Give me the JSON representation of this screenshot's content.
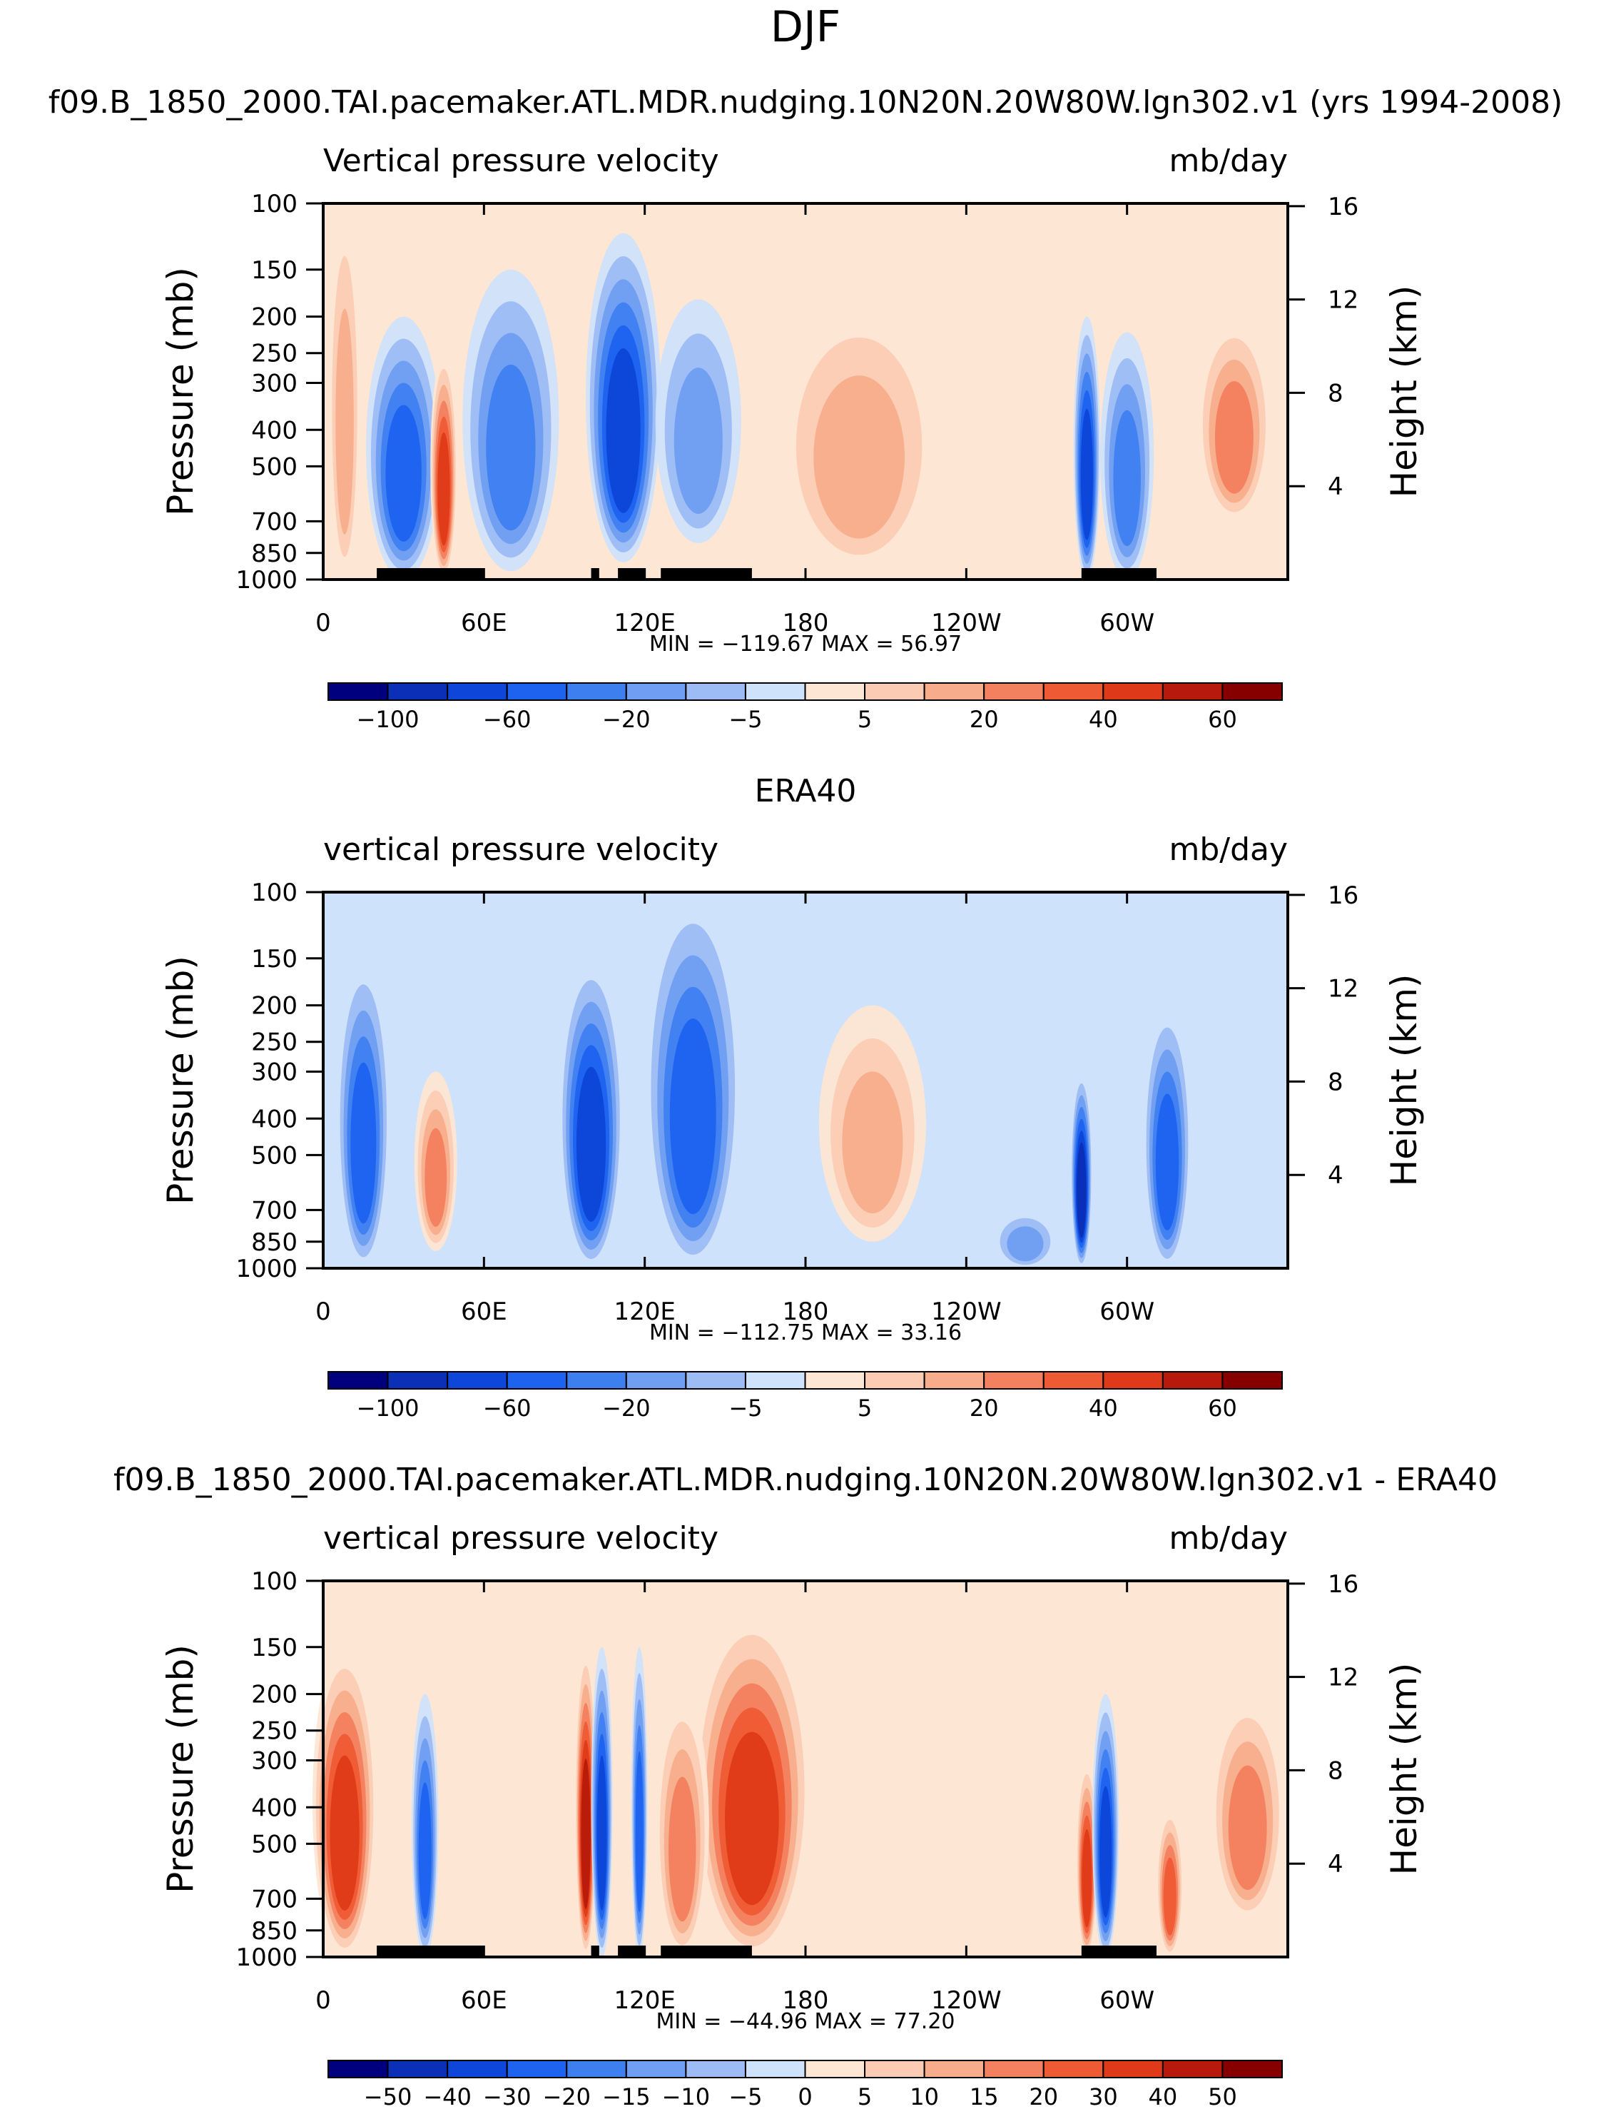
{
  "figure": {
    "season": "DJF",
    "colors": {
      "blues": [
        "#00007f",
        "#0b2fb7",
        "#0d46d8",
        "#1e62f0",
        "#3e7ff0",
        "#6f9ef2",
        "#9dbcf5",
        "#cfe2fb"
      ],
      "reds": [
        "#fde6d4",
        "#fbccb3",
        "#f7ad8c",
        "#f3805f",
        "#ee5a34",
        "#de3a19",
        "#b71a0c",
        "#870000"
      ],
      "topo": "#000000"
    }
  },
  "chart_data": [
    {
      "type": "heatmap",
      "title": "f09.B_1850_2000.TAI.pacemaker.ATL.MDR.nudging.10N20N.20W80W.lgn302.v1 (yrs 1994-2008)",
      "left_string": "Vertical pressure velocity",
      "right_string": "mb/day",
      "xlabel": "",
      "ylabel": "Pressure (mb)",
      "ylabel_right": "Height (km)",
      "x_ticks": [
        "0",
        "60E",
        "120E",
        "180",
        "120W",
        "60W"
      ],
      "y_ticks": [
        "100",
        "150",
        "200",
        "250",
        "300",
        "400",
        "500",
        "700",
        "850",
        "1000"
      ],
      "y2_ticks": [
        "16",
        "12",
        "8",
        "4"
      ],
      "min_max_text": "MIN = −119.67   MAX =  56.97",
      "min": -119.67,
      "max": 56.97,
      "colorbar_labels": [
        "−100",
        "−60",
        "−20",
        "−5",
        "5",
        "20",
        "40",
        "60"
      ]
    },
    {
      "type": "heatmap",
      "title": "ERA40",
      "left_string": "vertical pressure velocity",
      "right_string": "mb/day",
      "xlabel": "",
      "ylabel": "Pressure (mb)",
      "ylabel_right": "Height (km)",
      "x_ticks": [
        "0",
        "60E",
        "120E",
        "180",
        "120W",
        "60W"
      ],
      "y_ticks": [
        "100",
        "150",
        "200",
        "250",
        "300",
        "400",
        "500",
        "700",
        "850",
        "1000"
      ],
      "y2_ticks": [
        "16",
        "12",
        "8",
        "4"
      ],
      "min_max_text": "MIN = −112.75   MAX =  33.16",
      "min": -112.75,
      "max": 33.16,
      "colorbar_labels": [
        "−100",
        "−60",
        "−20",
        "−5",
        "5",
        "20",
        "40",
        "60"
      ]
    },
    {
      "type": "heatmap",
      "title": "f09.B_1850_2000.TAI.pacemaker.ATL.MDR.nudging.10N20N.20W80W.lgn302.v1 - ERA40",
      "left_string": "vertical pressure velocity",
      "right_string": "mb/day",
      "xlabel": "",
      "ylabel": "Pressure (mb)",
      "ylabel_right": "Height (km)",
      "x_ticks": [
        "0",
        "60E",
        "120E",
        "180",
        "120W",
        "60W"
      ],
      "y_ticks": [
        "100",
        "150",
        "200",
        "250",
        "300",
        "400",
        "500",
        "700",
        "850",
        "1000"
      ],
      "y2_ticks": [
        "16",
        "12",
        "8",
        "4"
      ],
      "min_max_text": "MIN = −44.96   MAX =  77.20",
      "min": -44.96,
      "max": 77.2,
      "colorbar_labels": [
        "−50",
        "−40",
        "−30",
        "−20",
        "−15",
        "−10",
        "−5",
        "0",
        "5",
        "10",
        "15",
        "20",
        "30",
        "40",
        "50"
      ]
    }
  ]
}
